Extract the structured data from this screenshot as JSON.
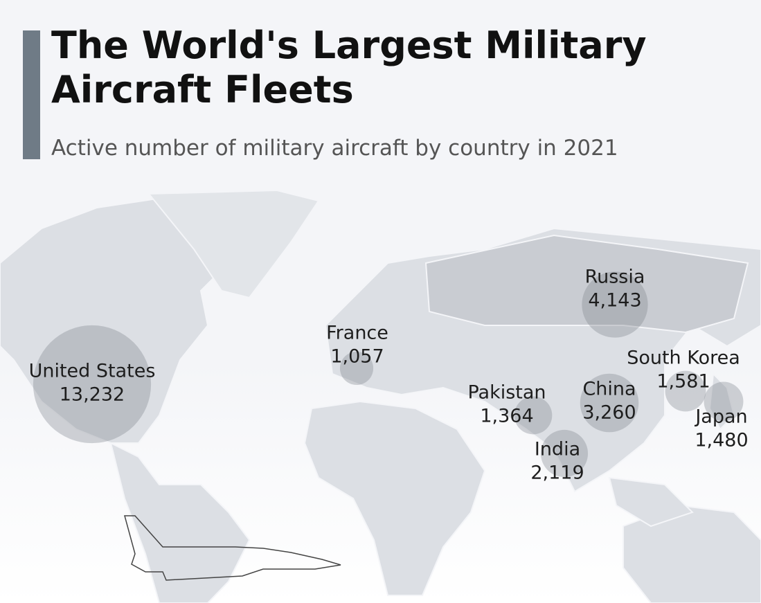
{
  "title": "The World's Largest Military Aircraft Fleets",
  "subtitle": "Active number of military aircraft by country in 2021",
  "chart_data": {
    "type": "bubble_map",
    "categories": [
      "United States",
      "France",
      "Russia",
      "Pakistan",
      "India",
      "China",
      "South Korea",
      "Japan"
    ],
    "values": [
      13232,
      1057,
      4143,
      1364,
      2119,
      3260,
      1581,
      1480
    ],
    "value_labels": [
      "13,232",
      "1,057",
      "4,143",
      "1,364",
      "2,119",
      "3,260",
      "1,581",
      "1,480"
    ],
    "color": "#7d838c"
  }
}
